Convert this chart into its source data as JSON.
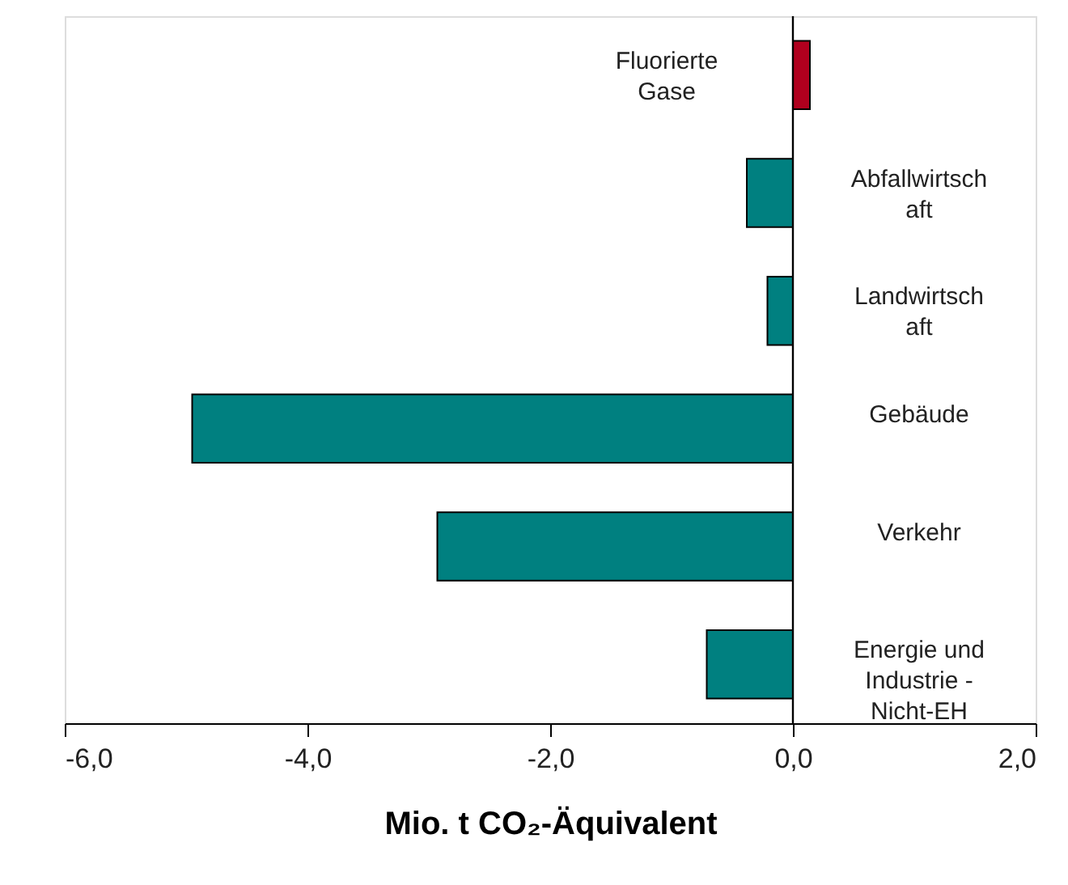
{
  "chart_data": {
    "type": "bar",
    "orientation": "horizontal",
    "categories": [
      "Fluorierte\nGase",
      "Abfallwirtsch\naft",
      "Landwirtsch\naft",
      "Gebäude",
      "Verkehr",
      "Energie und\nIndustrie -\nNicht-EH"
    ],
    "values": [
      0.14,
      -0.38,
      -0.21,
      -4.95,
      -2.93,
      -0.71
    ],
    "colors": [
      "#b0001e",
      "#008080",
      "#008080",
      "#008080",
      "#008080",
      "#008080"
    ],
    "xlabel": "Mio. t CO₂-Äquivalent",
    "xlim": [
      -6,
      2
    ],
    "xticks": [
      {
        "value": -6,
        "label": "-6,0"
      },
      {
        "value": -4,
        "label": "-4,0"
      },
      {
        "value": -2,
        "label": "-2,0"
      },
      {
        "value": 0,
        "label": "0,0"
      },
      {
        "value": 2,
        "label": "2,0"
      }
    ],
    "ref_lines": [
      {
        "axis": "x",
        "value": 0,
        "color": "#000000"
      }
    ],
    "grid": false
  }
}
